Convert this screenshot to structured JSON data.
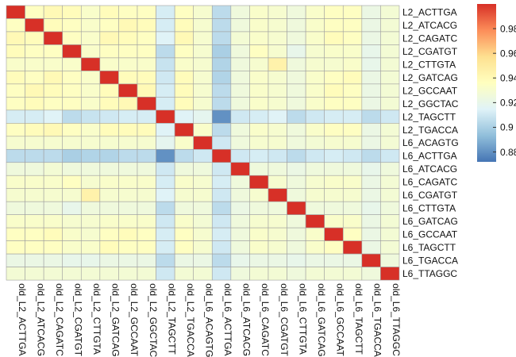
{
  "chart_data": {
    "type": "heatmap",
    "title": "",
    "xlabel": "",
    "ylabel": "",
    "row_labels": [
      "L2_ACTTGA",
      "L2_ATCACG",
      "L2_CAGATC",
      "L2_CGATGT",
      "L2_CTTGTA",
      "L2_GATCAG",
      "L2_GCCAAT",
      "L2_GGCTAC",
      "L2_TAGCTT",
      "L2_TGACCA",
      "L6_ACAGTG",
      "L6_ACTTGA",
      "L6_ATCACG",
      "L6_CAGATC",
      "L6_CGATGT",
      "L6_CTTGTA",
      "L6_GATCAG",
      "L6_GCCAAT",
      "L6_TAGCTT",
      "L6_TGACCA",
      "L6_TTAGGC"
    ],
    "col_labels": [
      "old_L2_ACTTGA",
      "old_L2_ATCACG",
      "old_L2_CAGATC",
      "old_L2_CGATGT",
      "old_L2_CTTGTA",
      "old_L2_GATCAG",
      "old_L2_GCCAAT",
      "old_L2_GGCTAC",
      "old_L2_TAGCTT",
      "old_L2_TGACCA",
      "old_L6_ACAGTG",
      "old_L6_ACTTGA",
      "old_L6_ATCACG",
      "old_L6_CAGATC",
      "old_L6_CGATGT",
      "old_L6_CTTGTA",
      "old_L6_GATCAG",
      "old_L6_GCCAAT",
      "old_L6_TAGCTT",
      "old_L6_TGACCA",
      "old_L6_TTAGGC"
    ],
    "values": [
      [
        1.0,
        0.935,
        0.94,
        0.938,
        0.932,
        0.938,
        0.935,
        0.935,
        0.912,
        0.935,
        0.93,
        0.905,
        0.925,
        0.932,
        0.93,
        0.925,
        0.932,
        0.935,
        0.935,
        0.922,
        0.928
      ],
      [
        0.935,
        1.0,
        0.938,
        0.935,
        0.932,
        0.935,
        0.94,
        0.938,
        0.912,
        0.938,
        0.93,
        0.905,
        0.925,
        0.932,
        0.93,
        0.925,
        0.932,
        0.935,
        0.935,
        0.922,
        0.928
      ],
      [
        0.94,
        0.938,
        1.0,
        0.935,
        0.932,
        0.94,
        0.938,
        0.935,
        0.915,
        0.94,
        0.93,
        0.905,
        0.928,
        0.932,
        0.93,
        0.925,
        0.932,
        0.938,
        0.935,
        0.922,
        0.928
      ],
      [
        0.938,
        0.935,
        0.935,
        1.0,
        0.932,
        0.935,
        0.935,
        0.935,
        0.905,
        0.935,
        0.93,
        0.9,
        0.925,
        0.935,
        0.93,
        0.92,
        0.93,
        0.932,
        0.932,
        0.92,
        0.928
      ],
      [
        0.932,
        0.932,
        0.932,
        0.932,
        1.0,
        0.932,
        0.932,
        0.932,
        0.908,
        0.932,
        0.93,
        0.902,
        0.925,
        0.93,
        0.945,
        0.925,
        0.93,
        0.93,
        0.932,
        0.92,
        0.928
      ],
      [
        0.938,
        0.935,
        0.94,
        0.935,
        0.932,
        1.0,
        0.938,
        0.938,
        0.91,
        0.938,
        0.93,
        0.902,
        0.925,
        0.932,
        0.93,
        0.925,
        0.932,
        0.935,
        0.938,
        0.922,
        0.928
      ],
      [
        0.935,
        0.94,
        0.938,
        0.935,
        0.932,
        0.938,
        1.0,
        0.94,
        0.912,
        0.938,
        0.93,
        0.905,
        0.925,
        0.932,
        0.93,
        0.925,
        0.932,
        0.938,
        0.935,
        0.922,
        0.928
      ],
      [
        0.935,
        0.938,
        0.935,
        0.935,
        0.932,
        0.938,
        0.94,
        1.0,
        0.912,
        0.938,
        0.93,
        0.905,
        0.925,
        0.932,
        0.93,
        0.925,
        0.932,
        0.935,
        0.935,
        0.922,
        0.928
      ],
      [
        0.912,
        0.912,
        0.915,
        0.905,
        0.908,
        0.91,
        0.912,
        0.912,
        1.0,
        0.915,
        0.918,
        0.88,
        0.91,
        0.912,
        0.915,
        0.905,
        0.91,
        0.912,
        0.912,
        0.905,
        0.91
      ],
      [
        0.935,
        0.938,
        0.94,
        0.935,
        0.932,
        0.938,
        0.938,
        0.938,
        0.915,
        1.0,
        0.932,
        0.905,
        0.925,
        0.932,
        0.93,
        0.925,
        0.932,
        0.935,
        0.935,
        0.922,
        0.928
      ],
      [
        0.93,
        0.93,
        0.93,
        0.93,
        0.93,
        0.93,
        0.93,
        0.93,
        0.918,
        0.932,
        1.0,
        0.91,
        0.925,
        0.93,
        0.93,
        0.925,
        0.928,
        0.93,
        0.93,
        0.922,
        0.928
      ],
      [
        0.905,
        0.905,
        0.905,
        0.9,
        0.902,
        0.902,
        0.905,
        0.905,
        0.88,
        0.905,
        0.91,
        1.0,
        0.91,
        0.912,
        0.91,
        0.905,
        0.91,
        0.912,
        0.91,
        0.905,
        0.91
      ],
      [
        0.925,
        0.925,
        0.928,
        0.925,
        0.925,
        0.925,
        0.925,
        0.925,
        0.91,
        0.925,
        0.925,
        0.91,
        1.0,
        0.925,
        0.925,
        0.922,
        0.925,
        0.925,
        0.925,
        0.92,
        0.925
      ],
      [
        0.932,
        0.932,
        0.932,
        0.935,
        0.93,
        0.932,
        0.932,
        0.932,
        0.912,
        0.932,
        0.93,
        0.912,
        0.925,
        1.0,
        0.93,
        0.925,
        0.93,
        0.932,
        0.932,
        0.922,
        0.928
      ],
      [
        0.93,
        0.93,
        0.93,
        0.93,
        0.945,
        0.93,
        0.93,
        0.93,
        0.915,
        0.93,
        0.93,
        0.91,
        0.925,
        0.93,
        1.0,
        0.925,
        0.93,
        0.93,
        0.93,
        0.922,
        0.928
      ],
      [
        0.925,
        0.925,
        0.925,
        0.92,
        0.925,
        0.925,
        0.925,
        0.925,
        0.905,
        0.925,
        0.925,
        0.905,
        0.922,
        0.925,
        0.925,
        1.0,
        0.925,
        0.925,
        0.925,
        0.92,
        0.925
      ],
      [
        0.932,
        0.932,
        0.932,
        0.93,
        0.93,
        0.932,
        0.932,
        0.932,
        0.91,
        0.932,
        0.928,
        0.91,
        0.925,
        0.93,
        0.93,
        0.925,
        1.0,
        0.932,
        0.932,
        0.922,
        0.928
      ],
      [
        0.935,
        0.935,
        0.938,
        0.932,
        0.93,
        0.935,
        0.938,
        0.935,
        0.912,
        0.935,
        0.93,
        0.912,
        0.925,
        0.932,
        0.93,
        0.925,
        0.932,
        1.0,
        0.935,
        0.922,
        0.928
      ],
      [
        0.935,
        0.935,
        0.935,
        0.932,
        0.932,
        0.938,
        0.935,
        0.935,
        0.912,
        0.935,
        0.93,
        0.91,
        0.925,
        0.932,
        0.93,
        0.925,
        0.932,
        0.935,
        1.0,
        0.922,
        0.928
      ],
      [
        0.922,
        0.922,
        0.922,
        0.92,
        0.92,
        0.922,
        0.922,
        0.922,
        0.905,
        0.922,
        0.922,
        0.905,
        0.92,
        0.922,
        0.922,
        0.92,
        0.922,
        0.922,
        0.922,
        1.0,
        0.925
      ],
      [
        0.928,
        0.928,
        0.928,
        0.928,
        0.928,
        0.928,
        0.928,
        0.928,
        0.91,
        0.928,
        0.928,
        0.91,
        0.925,
        0.928,
        0.928,
        0.925,
        0.928,
        0.928,
        0.928,
        0.925,
        1.0
      ]
    ],
    "color_range": [
      0.872,
      1.0
    ],
    "colorbar_ticks": [
      0.88,
      0.9,
      0.92,
      0.94,
      0.96,
      0.98
    ],
    "colormap": [
      "#4575b4",
      "#91bfdb",
      "#e0f3f8",
      "#ffffbf",
      "#fee090",
      "#fc8d59",
      "#d73027"
    ],
    "grid_color": "#a0a0a0",
    "legend_placement": "right"
  }
}
